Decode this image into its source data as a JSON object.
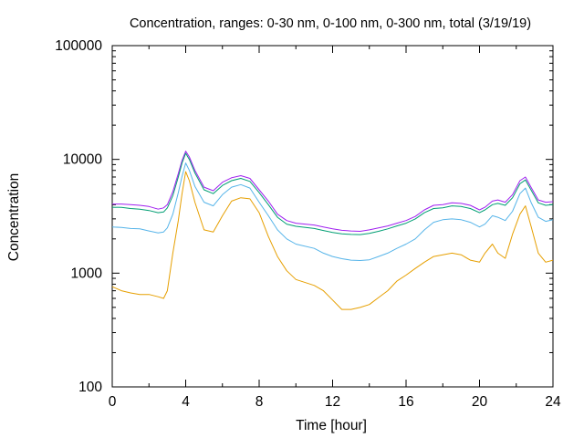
{
  "chart_data": {
    "type": "line",
    "title": "Concentration, ranges: 0-30 nm, 0-100 nm, 0-300 nm, total (3/19/19)",
    "xlabel": "Time [hour]",
    "ylabel": "Concentration",
    "xlim": [
      0,
      24
    ],
    "ylim": [
      100,
      100000
    ],
    "yscale": "log",
    "grid": false,
    "x_ticks": [
      0,
      4,
      8,
      12,
      16,
      20,
      24
    ],
    "x_tick_labels": [
      "0",
      "4",
      "8",
      "12",
      "16",
      "20",
      "24"
    ],
    "y_ticks": [
      100,
      1000,
      10000,
      100000
    ],
    "y_tick_labels": [
      "100",
      "1000",
      "10000",
      "100000"
    ],
    "x": [
      0,
      0.5,
      1,
      1.5,
      2,
      2.5,
      2.8,
      3,
      3.3,
      3.6,
      3.8,
      4.0,
      4.2,
      4.5,
      5.0,
      5.5,
      6.0,
      6.5,
      7.0,
      7.5,
      8.0,
      8.5,
      9.0,
      9.5,
      10.0,
      11.0,
      11.5,
      12.0,
      12.5,
      13.0,
      13.5,
      14.0,
      14.5,
      15.0,
      15.5,
      16.0,
      16.5,
      17.0,
      17.5,
      18.0,
      18.5,
      19.0,
      19.5,
      20.0,
      20.3,
      20.7,
      21.0,
      21.4,
      21.8,
      22.2,
      22.5,
      22.8,
      23.2,
      23.6,
      24.0
    ],
    "series": [
      {
        "color": "#a020f0",
        "values": [
          4050,
          4050,
          4000,
          3950,
          3850,
          3650,
          3750,
          4000,
          5200,
          7500,
          9800,
          11800,
          10500,
          8000,
          5700,
          5300,
          6300,
          6900,
          7200,
          6800,
          5400,
          4300,
          3300,
          2900,
          2750,
          2650,
          2550,
          2450,
          2380,
          2350,
          2330,
          2400,
          2500,
          2600,
          2750,
          2900,
          3150,
          3600,
          3950,
          4000,
          4150,
          4100,
          3950,
          3600,
          3800,
          4300,
          4400,
          4200,
          4900,
          6500,
          7000,
          5700,
          4400,
          4200,
          4250
        ]
      },
      {
        "color": "#009e73",
        "values": [
          3800,
          3780,
          3700,
          3650,
          3550,
          3400,
          3450,
          3750,
          4800,
          7000,
          9300,
          11300,
          10000,
          7600,
          5400,
          5000,
          5900,
          6500,
          6800,
          6400,
          5100,
          4000,
          3100,
          2700,
          2580,
          2470,
          2370,
          2280,
          2220,
          2190,
          2180,
          2240,
          2330,
          2450,
          2600,
          2750,
          3000,
          3400,
          3700,
          3750,
          3900,
          3850,
          3700,
          3400,
          3600,
          4000,
          4100,
          3950,
          4600,
          6100,
          6600,
          5400,
          4150,
          3950,
          4000
        ]
      },
      {
        "color": "#56b4e9",
        "values": [
          2550,
          2520,
          2470,
          2450,
          2350,
          2260,
          2300,
          2500,
          3300,
          5100,
          7100,
          9300,
          8000,
          5800,
          4200,
          3900,
          4900,
          5700,
          6000,
          5600,
          4200,
          3200,
          2400,
          2000,
          1800,
          1650,
          1500,
          1400,
          1340,
          1300,
          1290,
          1310,
          1400,
          1500,
          1650,
          1800,
          2000,
          2400,
          2800,
          2950,
          3000,
          2950,
          2800,
          2550,
          2700,
          3200,
          3100,
          2900,
          3500,
          5000,
          5600,
          4200,
          3100,
          2850,
          2950
        ]
      },
      {
        "color": "#e69f00",
        "values": [
          760,
          700,
          670,
          650,
          650,
          620,
          600,
          700,
          1500,
          2900,
          5000,
          7800,
          6500,
          4200,
          2400,
          2300,
          3200,
          4300,
          4600,
          4500,
          3400,
          2100,
          1400,
          1050,
          880,
          780,
          700,
          580,
          480,
          480,
          500,
          530,
          610,
          700,
          850,
          960,
          1100,
          1250,
          1400,
          1450,
          1500,
          1450,
          1300,
          1250,
          1500,
          1800,
          1500,
          1350,
          2200,
          3300,
          3900,
          2600,
          1500,
          1250,
          1300
        ]
      }
    ]
  }
}
